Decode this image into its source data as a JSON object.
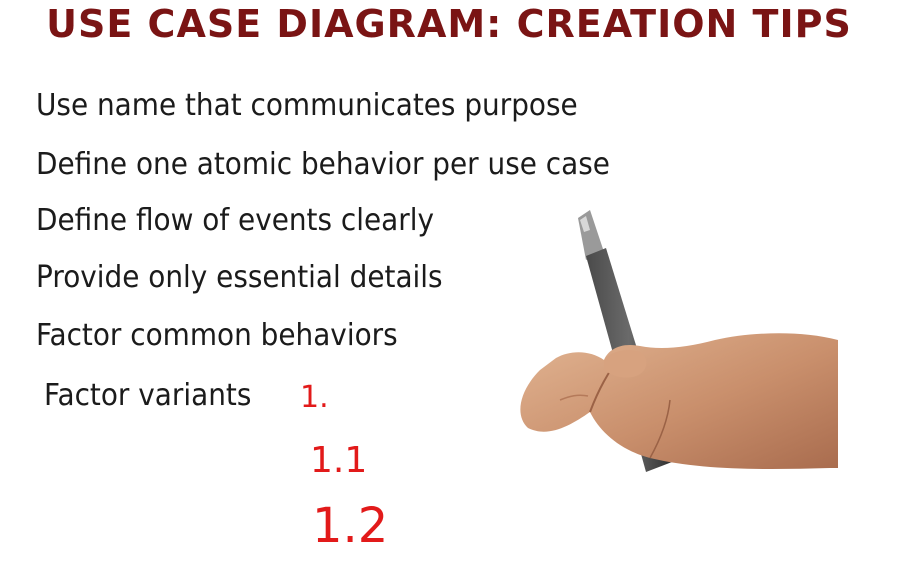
{
  "title": "USE CASE DIAGRAM: CREATION TIPS",
  "tips": [
    "Use name that communicates purpose",
    "Define one atomic behavior per use case",
    "Define flow of events clearly",
    "Provide only essential details",
    "Factor common behaviors",
    "Factor variants"
  ],
  "annotations": [
    "1.",
    "1.1",
    "1.2"
  ],
  "colors": {
    "title": "#7a1414",
    "text": "#1b1b1b",
    "annotation": "#e21a1a"
  },
  "icons": {
    "hand": "hand-holding-marker-icon"
  }
}
